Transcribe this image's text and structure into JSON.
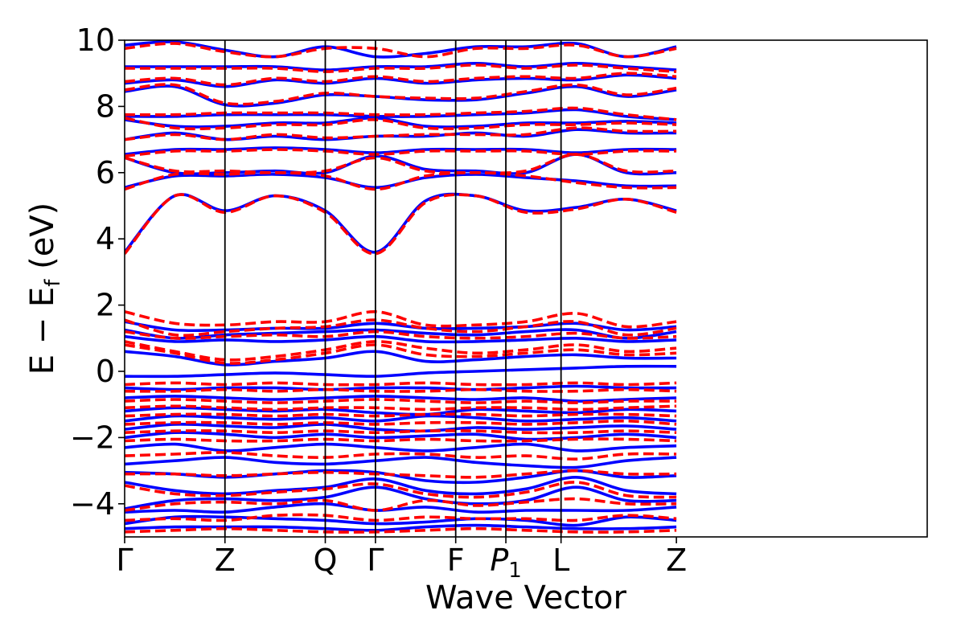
{
  "chart_data": {
    "type": "line",
    "title": "",
    "xlabel": "Wave Vector",
    "ylabel": "E − E_f (eV)",
    "ylabel_parts": {
      "main": "E  −  E",
      "sub": "f",
      "unit": " (eV)"
    },
    "xlim": [
      0,
      8
    ],
    "ylim": [
      -5,
      10
    ],
    "yticks": [
      -4,
      -2,
      0,
      2,
      4,
      6,
      8,
      10
    ],
    "ytick_labels": [
      "−4",
      "−2",
      "0",
      "2",
      "4",
      "6",
      "8",
      "10"
    ],
    "kpoints": [
      {
        "label": "Γ",
        "x": 0
      },
      {
        "label": "Z",
        "x": 1
      },
      {
        "label": "Q",
        "x": 2
      },
      {
        "label": "Γ",
        "x": 2.5
      },
      {
        "label": "F",
        "x": 3.3
      },
      {
        "label": "P",
        "sub": "1",
        "x": 3.8
      },
      {
        "label": "L",
        "x": 4.35
      },
      {
        "label": "Z",
        "x": 5.5
      }
    ],
    "grid": false,
    "legend": "none",
    "series": [
      {
        "style": "solid",
        "color": "#0000ff",
        "bands": [
          [
            3.6,
            5.3,
            4.85,
            5.3,
            4.85,
            3.6,
            5.15,
            5.3,
            4.85,
            4.95,
            5.2,
            4.85
          ],
          [
            5.55,
            5.9,
            5.9,
            5.95,
            5.85,
            5.55,
            5.85,
            5.95,
            5.85,
            5.75,
            5.6,
            5.6
          ],
          [
            6.45,
            6.0,
            6.0,
            6.05,
            6.0,
            6.5,
            6.1,
            6.05,
            6.0,
            6.55,
            6.0,
            6.0
          ],
          [
            6.55,
            6.7,
            6.7,
            6.75,
            6.7,
            6.6,
            6.7,
            6.7,
            6.7,
            6.6,
            6.7,
            6.7
          ],
          [
            7.0,
            7.2,
            7.0,
            7.1,
            7.0,
            7.1,
            7.1,
            7.2,
            7.1,
            7.3,
            7.2,
            7.2
          ],
          [
            7.6,
            7.4,
            7.4,
            7.5,
            7.5,
            7.65,
            7.4,
            7.4,
            7.5,
            7.5,
            7.55,
            7.5
          ],
          [
            7.7,
            7.7,
            7.75,
            7.75,
            7.75,
            7.7,
            7.7,
            7.75,
            7.8,
            7.9,
            7.7,
            7.6
          ],
          [
            8.45,
            8.6,
            8.05,
            8.1,
            8.35,
            8.3,
            8.2,
            8.2,
            8.4,
            8.6,
            8.3,
            8.5
          ],
          [
            8.7,
            8.8,
            8.6,
            8.8,
            8.7,
            8.85,
            8.7,
            8.8,
            8.85,
            8.8,
            8.95,
            8.85
          ],
          [
            9.2,
            9.2,
            9.2,
            9.2,
            9.1,
            9.2,
            9.2,
            9.3,
            9.2,
            9.3,
            9.2,
            9.1
          ],
          [
            9.85,
            9.95,
            9.7,
            9.5,
            9.8,
            9.5,
            9.6,
            9.8,
            9.8,
            9.9,
            9.5,
            9.8
          ],
          [
            1.5,
            1.25,
            1.25,
            1.3,
            1.3,
            1.45,
            1.3,
            1.3,
            1.35,
            1.45,
            1.25,
            1.35
          ],
          [
            1.25,
            1.0,
            1.1,
            1.15,
            1.2,
            1.25,
            1.15,
            1.1,
            1.2,
            1.25,
            1.0,
            1.2
          ],
          [
            1.05,
            0.9,
            0.95,
            0.9,
            0.95,
            1.05,
            0.9,
            0.9,
            0.95,
            1.0,
            0.9,
            0.95
          ],
          [
            0.6,
            0.45,
            0.2,
            0.3,
            0.4,
            0.6,
            0.3,
            0.35,
            0.45,
            0.5,
            0.4,
            0.4
          ],
          [
            -0.15,
            -0.15,
            -0.1,
            -0.05,
            -0.1,
            -0.15,
            -0.05,
            0.0,
            0.05,
            0.1,
            0.15,
            0.15
          ],
          [
            -0.5,
            -0.55,
            -0.5,
            -0.5,
            -0.55,
            -0.5,
            -0.5,
            -0.55,
            -0.5,
            -0.45,
            -0.5,
            -0.5
          ],
          [
            -0.8,
            -0.75,
            -0.8,
            -0.85,
            -0.8,
            -0.75,
            -0.8,
            -0.85,
            -0.8,
            -0.9,
            -0.85,
            -0.8
          ],
          [
            -1.2,
            -1.1,
            -1.15,
            -1.2,
            -1.15,
            -1.25,
            -1.3,
            -1.15,
            -1.2,
            -1.25,
            -1.15,
            -1.2
          ],
          [
            -1.5,
            -1.35,
            -1.4,
            -1.45,
            -1.4,
            -1.5,
            -1.35,
            -1.4,
            -1.5,
            -1.45,
            -1.4,
            -1.5
          ],
          [
            -1.75,
            -1.6,
            -1.65,
            -1.7,
            -1.6,
            -1.75,
            -1.8,
            -1.7,
            -1.75,
            -1.7,
            -1.65,
            -1.75
          ],
          [
            -2.0,
            -1.85,
            -1.9,
            -2.0,
            -1.9,
            -2.0,
            -1.95,
            -1.9,
            -2.05,
            -2.0,
            -1.9,
            -2.0
          ],
          [
            -2.3,
            -2.2,
            -2.4,
            -2.3,
            -2.2,
            -2.3,
            -2.4,
            -2.3,
            -2.2,
            -2.4,
            -2.3,
            -2.25
          ],
          [
            -2.8,
            -2.7,
            -2.6,
            -2.75,
            -2.8,
            -2.7,
            -2.6,
            -2.75,
            -2.85,
            -2.9,
            -2.7,
            -2.6
          ],
          [
            -3.05,
            -3.1,
            -3.2,
            -3.1,
            -3.0,
            -3.05,
            -3.3,
            -3.35,
            -3.2,
            -3.0,
            -3.2,
            -3.15
          ],
          [
            -3.35,
            -3.6,
            -3.7,
            -3.6,
            -3.5,
            -3.25,
            -3.6,
            -3.7,
            -3.55,
            -3.2,
            -3.6,
            -3.7
          ],
          [
            -4.15,
            -3.9,
            -3.85,
            -3.9,
            -3.8,
            -3.5,
            -3.85,
            -4.0,
            -3.9,
            -3.5,
            -3.9,
            -3.9
          ],
          [
            -4.25,
            -4.2,
            -4.25,
            -4.1,
            -4.0,
            -4.2,
            -4.1,
            -4.25,
            -4.2,
            -4.2,
            -4.2,
            -4.1
          ],
          [
            -4.6,
            -4.4,
            -4.4,
            -4.45,
            -4.5,
            -4.6,
            -4.55,
            -4.45,
            -4.5,
            -4.65,
            -4.4,
            -4.5
          ],
          [
            -4.75,
            -4.7,
            -4.7,
            -4.7,
            -4.75,
            -4.8,
            -4.7,
            -4.65,
            -4.7,
            -4.75,
            -4.75,
            -4.7
          ]
        ]
      },
      {
        "style": "dashed",
        "color": "#ff0000",
        "bands": [
          [
            3.55,
            5.3,
            4.8,
            5.3,
            4.8,
            3.55,
            5.1,
            5.3,
            4.8,
            4.9,
            5.2,
            4.8
          ],
          [
            5.5,
            5.95,
            5.95,
            6.0,
            5.9,
            5.5,
            5.9,
            6.0,
            5.9,
            5.7,
            5.55,
            5.55
          ],
          [
            6.45,
            6.05,
            6.05,
            6.0,
            6.05,
            6.45,
            6.05,
            6.0,
            6.05,
            6.55,
            6.05,
            6.05
          ],
          [
            6.5,
            6.65,
            6.65,
            6.7,
            6.65,
            6.55,
            6.65,
            6.65,
            6.65,
            6.55,
            6.65,
            6.65
          ],
          [
            7.0,
            7.15,
            7.0,
            7.15,
            7.05,
            7.1,
            7.15,
            7.15,
            7.15,
            7.35,
            7.25,
            7.25
          ],
          [
            7.65,
            7.35,
            7.35,
            7.45,
            7.45,
            7.6,
            7.35,
            7.35,
            7.45,
            7.45,
            7.5,
            7.45
          ],
          [
            7.75,
            7.75,
            7.8,
            7.8,
            7.8,
            7.75,
            7.75,
            7.8,
            7.85,
            7.95,
            7.75,
            7.6
          ],
          [
            8.5,
            8.65,
            8.1,
            8.15,
            8.4,
            8.3,
            8.25,
            8.25,
            8.45,
            8.65,
            8.35,
            8.55
          ],
          [
            8.75,
            8.85,
            8.65,
            8.85,
            8.75,
            8.9,
            8.75,
            8.85,
            8.9,
            8.85,
            9.0,
            8.9
          ],
          [
            9.15,
            9.15,
            9.15,
            9.15,
            9.05,
            9.15,
            9.15,
            9.25,
            9.15,
            9.25,
            9.15,
            9.05
          ],
          [
            9.75,
            9.9,
            9.65,
            9.5,
            9.75,
            9.75,
            9.5,
            9.75,
            9.75,
            9.85,
            9.5,
            9.75
          ],
          [
            1.8,
            1.45,
            1.4,
            1.5,
            1.5,
            1.8,
            1.4,
            1.4,
            1.5,
            1.75,
            1.35,
            1.5
          ],
          [
            1.55,
            1.1,
            1.2,
            1.3,
            1.35,
            1.55,
            1.3,
            1.2,
            1.35,
            1.5,
            1.1,
            1.3
          ],
          [
            1.2,
            1.0,
            1.05,
            1.1,
            1.05,
            1.2,
            1.05,
            1.0,
            1.05,
            1.15,
            1.0,
            1.05
          ],
          [
            0.9,
            0.6,
            0.35,
            0.45,
            0.65,
            0.9,
            0.7,
            0.55,
            0.65,
            0.8,
            0.6,
            0.7
          ],
          [
            0.8,
            0.55,
            0.25,
            0.35,
            0.55,
            0.8,
            0.5,
            0.45,
            0.55,
            0.65,
            0.5,
            0.55
          ],
          [
            -0.4,
            -0.35,
            -0.4,
            -0.35,
            -0.4,
            -0.4,
            -0.35,
            -0.4,
            -0.4,
            -0.35,
            -0.4,
            -0.35
          ],
          [
            -0.6,
            -0.6,
            -0.55,
            -0.6,
            -0.55,
            -0.6,
            -0.6,
            -0.55,
            -0.6,
            -0.6,
            -0.55,
            -0.6
          ],
          [
            -0.9,
            -0.85,
            -0.9,
            -0.95,
            -0.9,
            -0.85,
            -0.9,
            -0.95,
            -0.9,
            -0.95,
            -0.9,
            -0.9
          ],
          [
            -1.1,
            -1.05,
            -1.1,
            -1.15,
            -1.1,
            -1.1,
            -1.15,
            -1.1,
            -1.1,
            -1.15,
            -1.1,
            -1.05
          ],
          [
            -1.35,
            -1.3,
            -1.3,
            -1.35,
            -1.3,
            -1.35,
            -1.3,
            -1.3,
            -1.35,
            -1.3,
            -1.3,
            -1.35
          ],
          [
            -1.6,
            -1.55,
            -1.55,
            -1.6,
            -1.55,
            -1.6,
            -1.55,
            -1.55,
            -1.6,
            -1.55,
            -1.5,
            -1.6
          ],
          [
            -1.85,
            -1.8,
            -1.8,
            -1.85,
            -1.8,
            -1.85,
            -1.8,
            -1.8,
            -1.85,
            -1.85,
            -1.8,
            -1.85
          ],
          [
            -2.1,
            -2.05,
            -2.1,
            -2.1,
            -2.05,
            -2.1,
            -2.05,
            -2.1,
            -2.1,
            -2.05,
            -2.05,
            -2.1
          ],
          [
            -2.55,
            -2.5,
            -2.45,
            -2.55,
            -2.6,
            -2.5,
            -2.5,
            -2.6,
            -2.55,
            -2.65,
            -2.5,
            -2.5
          ],
          [
            -3.1,
            -3.1,
            -3.15,
            -3.1,
            -3.05,
            -3.1,
            -3.15,
            -3.2,
            -3.1,
            -3.0,
            -3.1,
            -3.1
          ],
          [
            -3.45,
            -3.7,
            -3.75,
            -3.65,
            -3.55,
            -3.4,
            -3.7,
            -3.8,
            -3.65,
            -3.35,
            -3.75,
            -3.8
          ],
          [
            -4.2,
            -4.0,
            -3.95,
            -4.0,
            -3.9,
            -4.2,
            -3.9,
            -4.05,
            -3.95,
            -3.85,
            -4.0,
            -4.0
          ],
          [
            -4.5,
            -4.45,
            -4.5,
            -4.35,
            -4.35,
            -4.5,
            -4.4,
            -4.45,
            -4.45,
            -4.5,
            -4.35,
            -4.45
          ],
          [
            -4.85,
            -4.8,
            -4.75,
            -4.8,
            -4.85,
            -4.85,
            -4.8,
            -4.75,
            -4.8,
            -4.85,
            -4.85,
            -4.8
          ]
        ]
      }
    ]
  }
}
